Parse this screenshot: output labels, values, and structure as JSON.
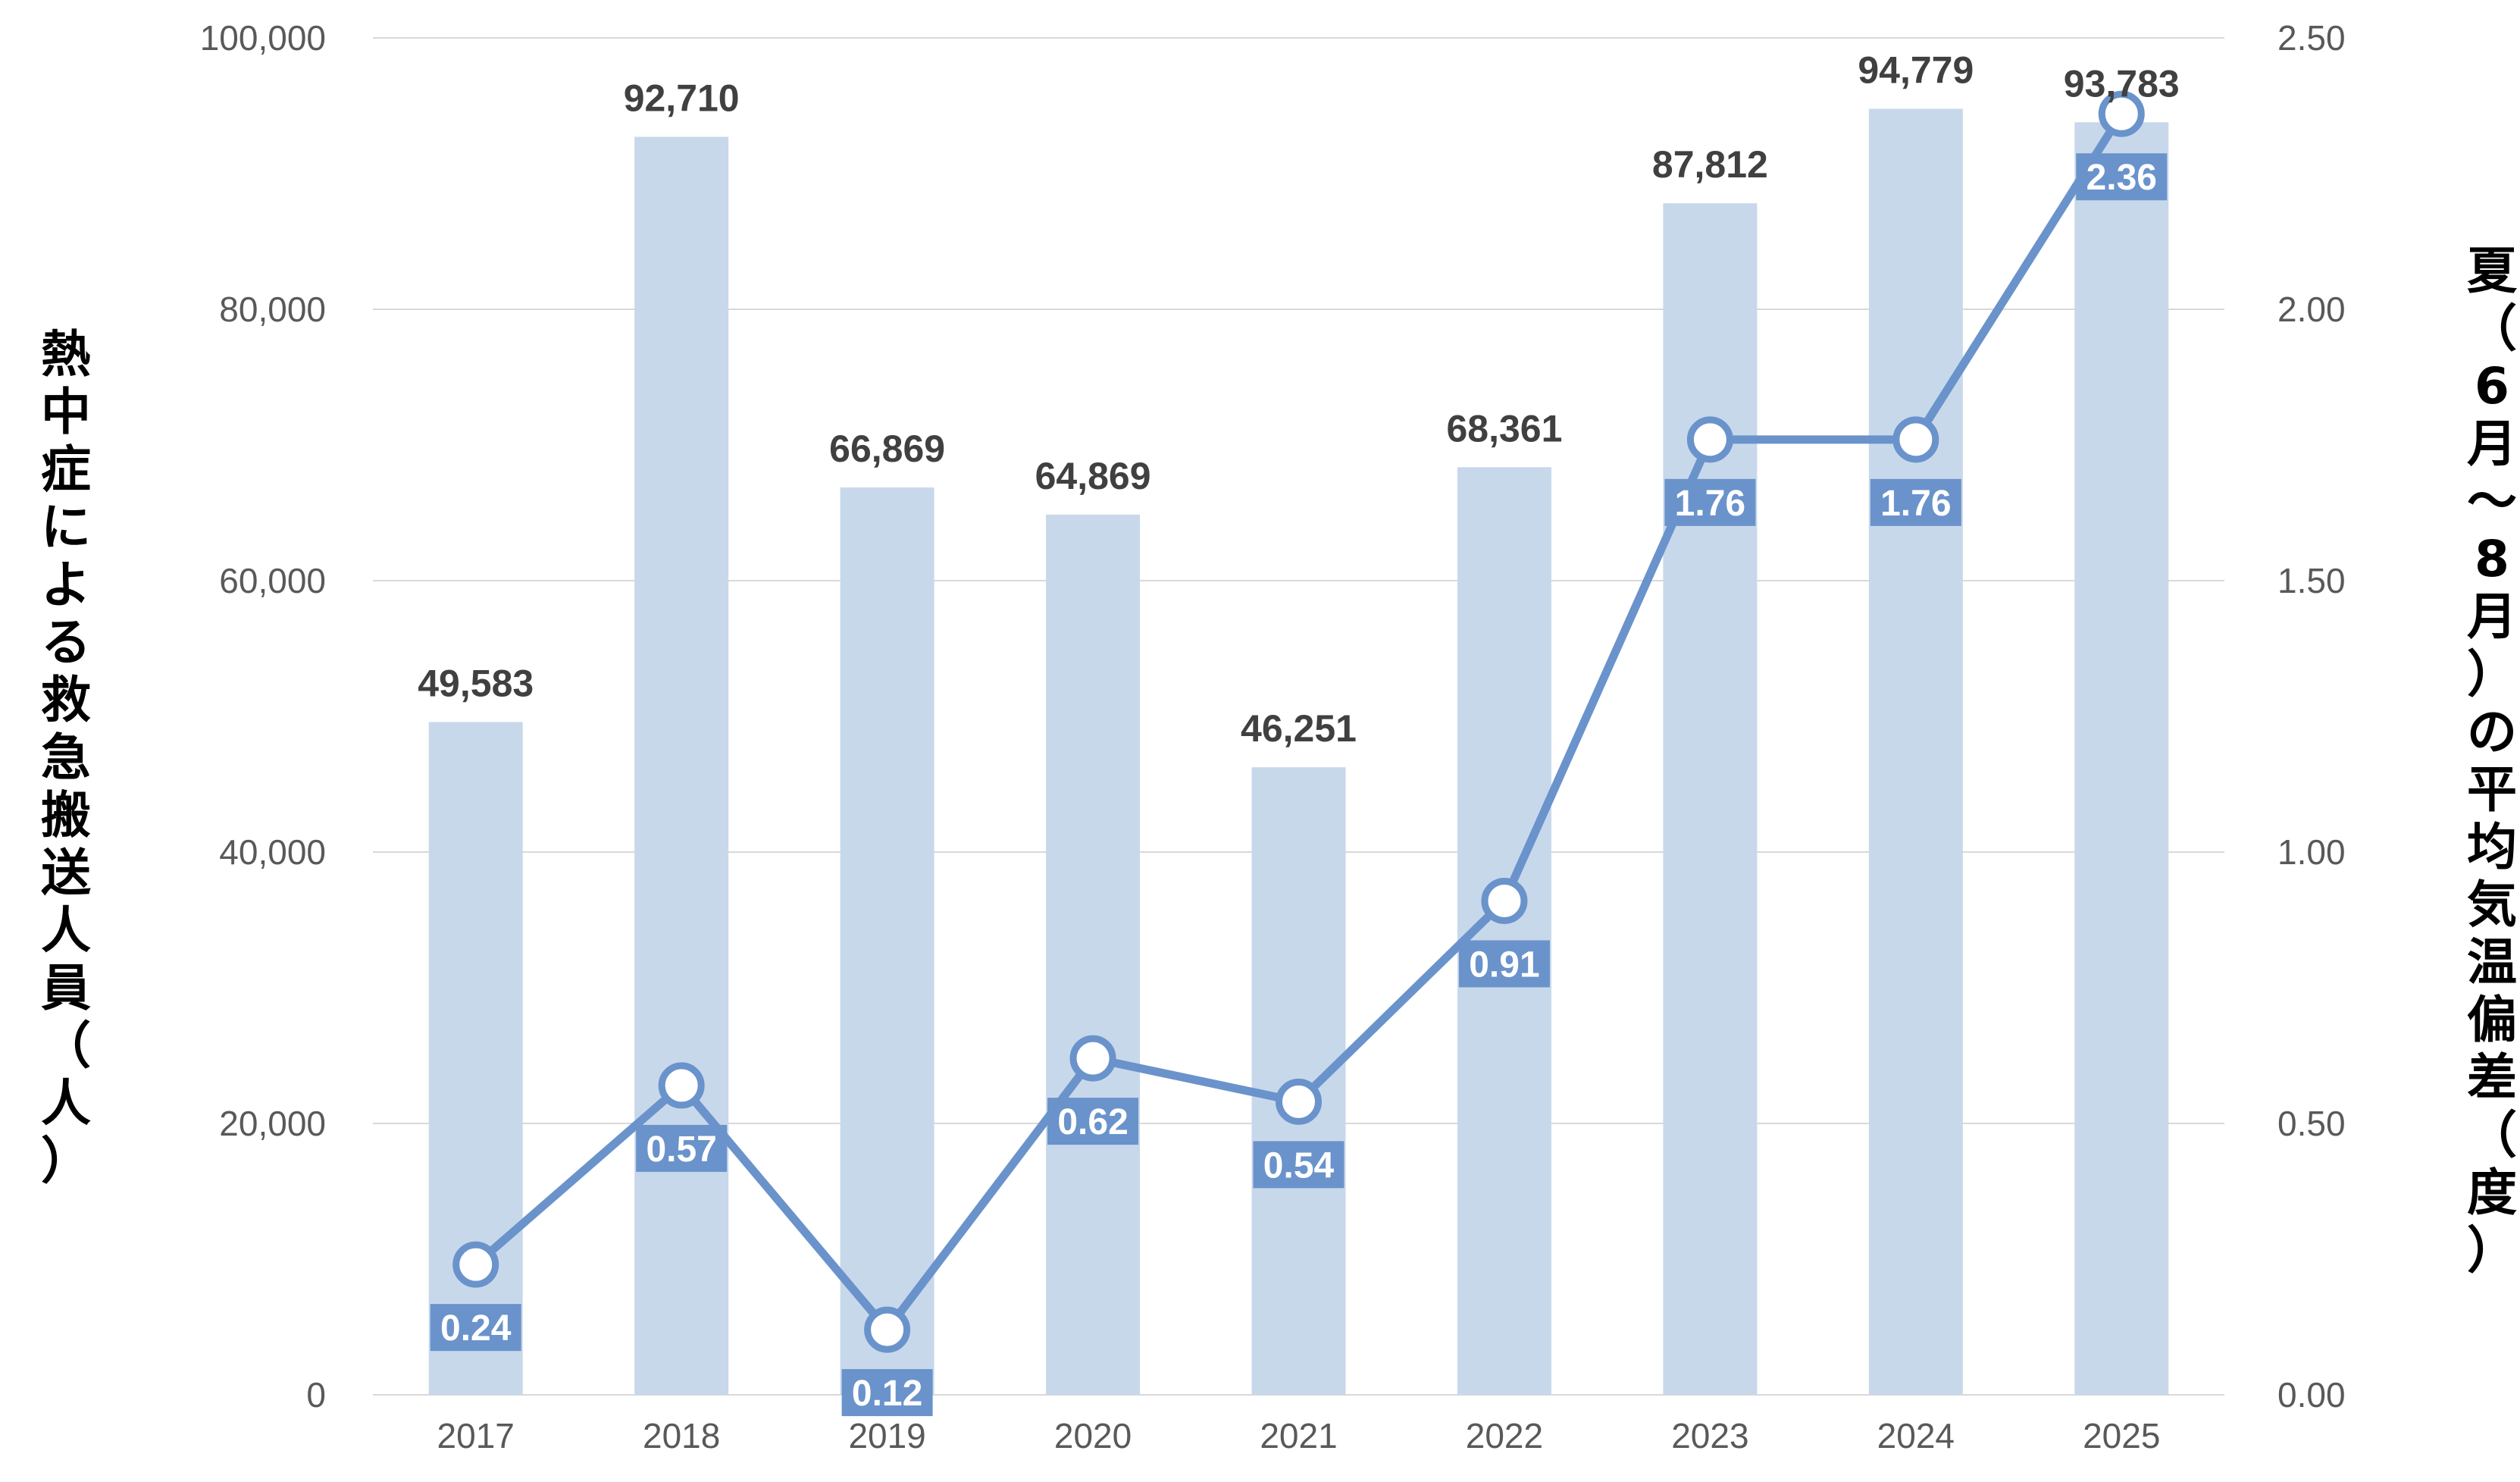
{
  "chart_data": {
    "type": "bar+line",
    "title": "",
    "categories": [
      "2017",
      "2018",
      "2019",
      "2020",
      "2021",
      "2022",
      "2023",
      "2024",
      "2025"
    ],
    "series": [
      {
        "name": "熱中症による救急搬送人員（人）",
        "type": "bar",
        "axis": "left",
        "values": [
          49583,
          92710,
          66869,
          64869,
          46251,
          68361,
          87812,
          94779,
          93783
        ],
        "labels": [
          "49,583",
          "92,710",
          "66,869",
          "64,869",
          "46,251",
          "68,361",
          "87,812",
          "94,779",
          "93,783"
        ],
        "color": "#c8d8eb"
      },
      {
        "name": "夏（6月〜8月）の平均気温偏差（度）",
        "type": "line",
        "axis": "right",
        "values": [
          0.24,
          0.57,
          0.12,
          0.62,
          0.54,
          0.91,
          1.76,
          1.76,
          2.36
        ],
        "labels": [
          "0.24",
          "0.57",
          "0.12",
          "0.62",
          "0.54",
          "0.91",
          "1.76",
          "1.76",
          "2.36"
        ],
        "color": "#6a93cb"
      }
    ],
    "y_left": {
      "label": "熱中症による救急搬送人員（人）",
      "range": [
        0,
        100000
      ],
      "ticks": [
        "0",
        "20,000",
        "40,000",
        "60,000",
        "80,000",
        "100,000"
      ]
    },
    "y_right": {
      "label": "夏（6月〜8月）の平均気温偏差（度）",
      "range": [
        0,
        2.5
      ],
      "ticks": [
        "0.00",
        "0.50",
        "1.00",
        "1.50",
        "2.00",
        "2.50"
      ]
    },
    "grid": true,
    "legend": "none",
    "colors": {
      "bar": "#c8d8eb",
      "line": "#6a93cb",
      "grid": "#d9d9d9",
      "label_box": "#6a93cb"
    }
  }
}
